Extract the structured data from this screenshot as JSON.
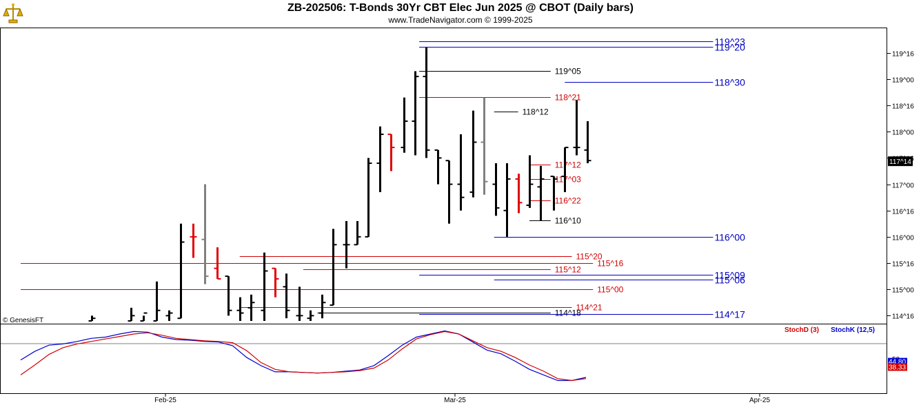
{
  "header": {
    "title": "ZB-202506:  T-Bonds 30Yr CBT Elec Jun 2025 @ CBOT  (Daily bars)",
    "subtitle": "www.TradeNavigator.com © 1999-2025"
  },
  "copyright": "© GenesisFT",
  "colors": {
    "up_bar": "#000000",
    "down_bar": "#e00000",
    "neutral_bar": "#808080",
    "blue_level": "#0000c0",
    "red_level": "#d00000",
    "black_level": "#000000",
    "stochK": "#0000d0",
    "stochD": "#d00000"
  },
  "chart_data": [
    {
      "type": "bar",
      "subtype": "ohlc",
      "y_axis_ticks": [
        "119^16",
        "119^00",
        "118^16",
        "118^00",
        "117^16",
        "117^00",
        "116^16",
        "116^00",
        "115^16",
        "115^00",
        "114^16"
      ],
      "current_price_label": "117^14",
      "x_axis_labels": [
        "Feb-25",
        "Mar-25",
        "Apr-25"
      ],
      "ylim": [
        114.4,
        119.85
      ],
      "levels": [
        {
          "label": "119^23",
          "value": 119.72,
          "color": "blue",
          "x0": 28.2,
          "x1": 49
        },
        {
          "label": "119^20",
          "value": 119.62,
          "color": "blue",
          "x0": 28.2,
          "x1": 49
        },
        {
          "label": "119^05",
          "value": 119.16,
          "color": "black",
          "x0": 28.2,
          "x1": 37.5
        },
        {
          "label": "118^30",
          "value": 118.94,
          "color": "blue",
          "x0": 38.5,
          "x1": 49
        },
        {
          "label": "118^21",
          "value": 118.66,
          "color": "red",
          "x0": 28.2,
          "x1": 37.5
        },
        {
          "label": "118^12",
          "value": 118.38,
          "color": "black",
          "x0": 33.5,
          "x1": 35.2
        },
        {
          "label": "117^12",
          "value": 117.38,
          "color": "red",
          "x0": 36,
          "x1": 37.5
        },
        {
          "label": "117^03",
          "value": 117.1,
          "color": "red",
          "x0": 36,
          "x1": 37.5
        },
        {
          "label": "116^22",
          "value": 116.69,
          "color": "red",
          "x0": 36,
          "x1": 37.5
        },
        {
          "label": "116^10",
          "value": 116.31,
          "color": "black",
          "x0": 36,
          "x1": 37.5
        },
        {
          "label": "116^00",
          "value": 116.0,
          "color": "blue",
          "x0": 33.5,
          "x1": 49
        },
        {
          "label": "115^20",
          "value": 115.63,
          "color": "red",
          "x0": 15.5,
          "x1": 39
        },
        {
          "label": "115^16",
          "value": 115.5,
          "color": "red",
          "x0": 0,
          "x1": 40.5
        },
        {
          "label": "115^12",
          "value": 115.38,
          "color": "red",
          "x0": 20,
          "x1": 37.5
        },
        {
          "label": "115^09",
          "value": 115.28,
          "color": "blue",
          "x0": 28.2,
          "x1": 49
        },
        {
          "label": "115^06",
          "value": 115.19,
          "color": "blue",
          "x0": 33.5,
          "x1": 49
        },
        {
          "label": "115^00",
          "value": 115.0,
          "color": "red",
          "x0": 0,
          "x1": 40.5
        },
        {
          "label": "114^21",
          "value": 114.66,
          "color": "red",
          "x0": 15.5,
          "x1": 39
        },
        {
          "label": "114^18",
          "value": 114.56,
          "color": "black",
          "x0": 21,
          "x1": 37.5
        },
        {
          "label": "114^17",
          "value": 114.53,
          "color": "blue",
          "x0": 28.2,
          "x1": 49
        }
      ],
      "bars": [
        {
          "x": 5.0,
          "o": 114.4,
          "h": 114.5,
          "l": 114.4,
          "c": 114.45,
          "color": "up"
        },
        {
          "x": 7.8,
          "o": 114.4,
          "h": 114.65,
          "l": 114.4,
          "c": 114.5,
          "color": "up"
        },
        {
          "x": 8.7,
          "o": 114.4,
          "h": 114.5,
          "l": 114.4,
          "c": 114.55,
          "color": "up"
        },
        {
          "x": 9.6,
          "o": 114.4,
          "h": 115.15,
          "l": 114.4,
          "c": 114.6,
          "color": "up"
        },
        {
          "x": 10.5,
          "o": 114.5,
          "h": 114.6,
          "l": 114.4,
          "c": 114.55,
          "color": "up"
        },
        {
          "x": 11.3,
          "o": 114.45,
          "h": 116.25,
          "l": 114.45,
          "c": 115.9,
          "color": "up"
        },
        {
          "x": 12.2,
          "o": 116.0,
          "h": 116.25,
          "l": 115.6,
          "c": 116.0,
          "color": "down"
        },
        {
          "x": 13.0,
          "o": 115.95,
          "h": 117.0,
          "l": 115.1,
          "c": 115.25,
          "color": "neutral"
        },
        {
          "x": 13.9,
          "o": 115.4,
          "h": 115.8,
          "l": 115.2,
          "c": 115.2,
          "color": "down"
        },
        {
          "x": 14.7,
          "o": 115.25,
          "h": 115.25,
          "l": 114.5,
          "c": 114.6,
          "color": "up"
        },
        {
          "x": 15.5,
          "o": 114.6,
          "h": 114.85,
          "l": 114.4,
          "c": 114.55,
          "color": "up"
        },
        {
          "x": 16.3,
          "o": 114.65,
          "h": 114.9,
          "l": 114.4,
          "c": 114.75,
          "color": "up"
        },
        {
          "x": 17.2,
          "o": 114.6,
          "h": 115.7,
          "l": 114.4,
          "c": 115.35,
          "color": "up"
        },
        {
          "x": 18.0,
          "o": 115.4,
          "h": 115.4,
          "l": 114.85,
          "c": 115.2,
          "color": "down"
        },
        {
          "x": 18.8,
          "o": 115.05,
          "h": 115.3,
          "l": 114.45,
          "c": 114.6,
          "color": "up"
        },
        {
          "x": 19.7,
          "o": 114.5,
          "h": 115.05,
          "l": 114.4,
          "c": 114.5,
          "color": "up"
        },
        {
          "x": 20.5,
          "o": 114.45,
          "h": 114.6,
          "l": 114.4,
          "c": 114.5,
          "color": "up"
        },
        {
          "x": 21.3,
          "o": 114.55,
          "h": 114.9,
          "l": 114.45,
          "c": 114.75,
          "color": "up"
        },
        {
          "x": 22.1,
          "o": 114.7,
          "h": 116.15,
          "l": 114.7,
          "c": 115.85,
          "color": "up"
        },
        {
          "x": 23.0,
          "o": 115.85,
          "h": 116.3,
          "l": 115.4,
          "c": 115.85,
          "color": "up"
        },
        {
          "x": 23.8,
          "o": 115.85,
          "h": 116.3,
          "l": 115.85,
          "c": 116.0,
          "color": "up"
        },
        {
          "x": 24.6,
          "o": 116.0,
          "h": 117.5,
          "l": 116.0,
          "c": 117.4,
          "color": "up"
        },
        {
          "x": 25.4,
          "o": 117.4,
          "h": 118.1,
          "l": 116.85,
          "c": 117.95,
          "color": "up"
        },
        {
          "x": 26.2,
          "o": 117.95,
          "h": 117.95,
          "l": 117.25,
          "c": 117.7,
          "color": "down"
        },
        {
          "x": 27.1,
          "o": 117.7,
          "h": 118.65,
          "l": 117.6,
          "c": 118.2,
          "color": "up"
        },
        {
          "x": 27.9,
          "o": 118.2,
          "h": 119.15,
          "l": 117.55,
          "c": 119.05,
          "color": "up"
        },
        {
          "x": 28.7,
          "o": 119.05,
          "h": 119.6,
          "l": 117.5,
          "c": 117.65,
          "color": "up"
        },
        {
          "x": 29.5,
          "o": 117.65,
          "h": 117.65,
          "l": 117.0,
          "c": 117.5,
          "color": "up"
        },
        {
          "x": 30.3,
          "o": 117.45,
          "h": 117.45,
          "l": 116.25,
          "c": 117.0,
          "color": "up"
        },
        {
          "x": 31.1,
          "o": 117.0,
          "h": 117.95,
          "l": 116.5,
          "c": 116.75,
          "color": "up"
        },
        {
          "x": 32.0,
          "o": 116.85,
          "h": 118.4,
          "l": 116.75,
          "c": 117.8,
          "color": "up"
        },
        {
          "x": 32.8,
          "o": 117.8,
          "h": 118.65,
          "l": 116.8,
          "c": 117.05,
          "color": "neutral"
        },
        {
          "x": 33.6,
          "o": 117.0,
          "h": 117.4,
          "l": 116.4,
          "c": 116.55,
          "color": "up"
        },
        {
          "x": 34.4,
          "o": 116.5,
          "h": 117.4,
          "l": 116.0,
          "c": 117.1,
          "color": "up"
        },
        {
          "x": 35.2,
          "o": 117.1,
          "h": 117.2,
          "l": 116.45,
          "c": 116.65,
          "color": "down"
        },
        {
          "x": 36.0,
          "o": 116.6,
          "h": 117.55,
          "l": 116.55,
          "c": 117.0,
          "color": "up"
        },
        {
          "x": 36.8,
          "o": 116.95,
          "h": 117.35,
          "l": 116.3,
          "c": 117.1,
          "color": "up"
        },
        {
          "x": 37.7,
          "o": 117.15,
          "h": 117.15,
          "l": 116.5,
          "c": 117.1,
          "color": "up"
        },
        {
          "x": 38.5,
          "o": 117.15,
          "h": 117.7,
          "l": 116.85,
          "c": 117.7,
          "color": "up"
        },
        {
          "x": 39.3,
          "o": 117.7,
          "h": 118.6,
          "l": 117.55,
          "c": 117.7,
          "color": "up"
        },
        {
          "x": 40.1,
          "o": 117.65,
          "h": 118.2,
          "l": 117.4,
          "c": 117.45,
          "color": "up"
        }
      ]
    },
    {
      "type": "line",
      "legend": [
        "StochD (3)",
        "StochK (12,5)"
      ],
      "ylim": [
        0,
        100
      ],
      "right_labels": [
        "50",
        "44.80",
        "38.33"
      ],
      "series": [
        {
          "name": "StochK (12,5)",
          "color": "blue",
          "x": [
            0,
            1,
            2,
            3,
            4,
            5,
            6,
            7,
            8,
            9,
            10,
            11,
            12,
            13,
            14,
            15,
            16,
            17,
            18,
            19,
            20,
            21,
            22,
            23,
            24,
            25,
            26,
            27,
            28,
            29,
            30,
            31,
            32,
            33,
            34,
            35,
            36,
            37,
            38,
            39,
            40
          ],
          "values": [
            48,
            62,
            72,
            74,
            78,
            83,
            85,
            90,
            94,
            93,
            85,
            81,
            80,
            78,
            77,
            71,
            52,
            39,
            29,
            29,
            28,
            27,
            28,
            30,
            32,
            39,
            55,
            72,
            85,
            90,
            95,
            90,
            77,
            64,
            58,
            46,
            33,
            24,
            15,
            15,
            20
          ]
        },
        {
          "name": "StochD (3)",
          "color": "red",
          "x": [
            0,
            1,
            2,
            3,
            4,
            5,
            6,
            7,
            8,
            9,
            10,
            11,
            12,
            13,
            14,
            15,
            16,
            17,
            18,
            19,
            20,
            21,
            22,
            23,
            24,
            25,
            26,
            27,
            28,
            29,
            30,
            31,
            32,
            33,
            34,
            35,
            36,
            37,
            38,
            39,
            40
          ],
          "values": [
            24,
            40,
            57,
            68,
            74,
            78,
            82,
            86,
            90,
            92,
            88,
            83,
            81,
            79,
            78,
            76,
            63,
            44,
            33,
            29,
            28,
            27,
            28,
            29,
            31,
            35,
            48,
            66,
            82,
            89,
            94,
            90,
            79,
            68,
            62,
            52,
            40,
            30,
            18,
            15,
            18
          ]
        }
      ]
    }
  ]
}
